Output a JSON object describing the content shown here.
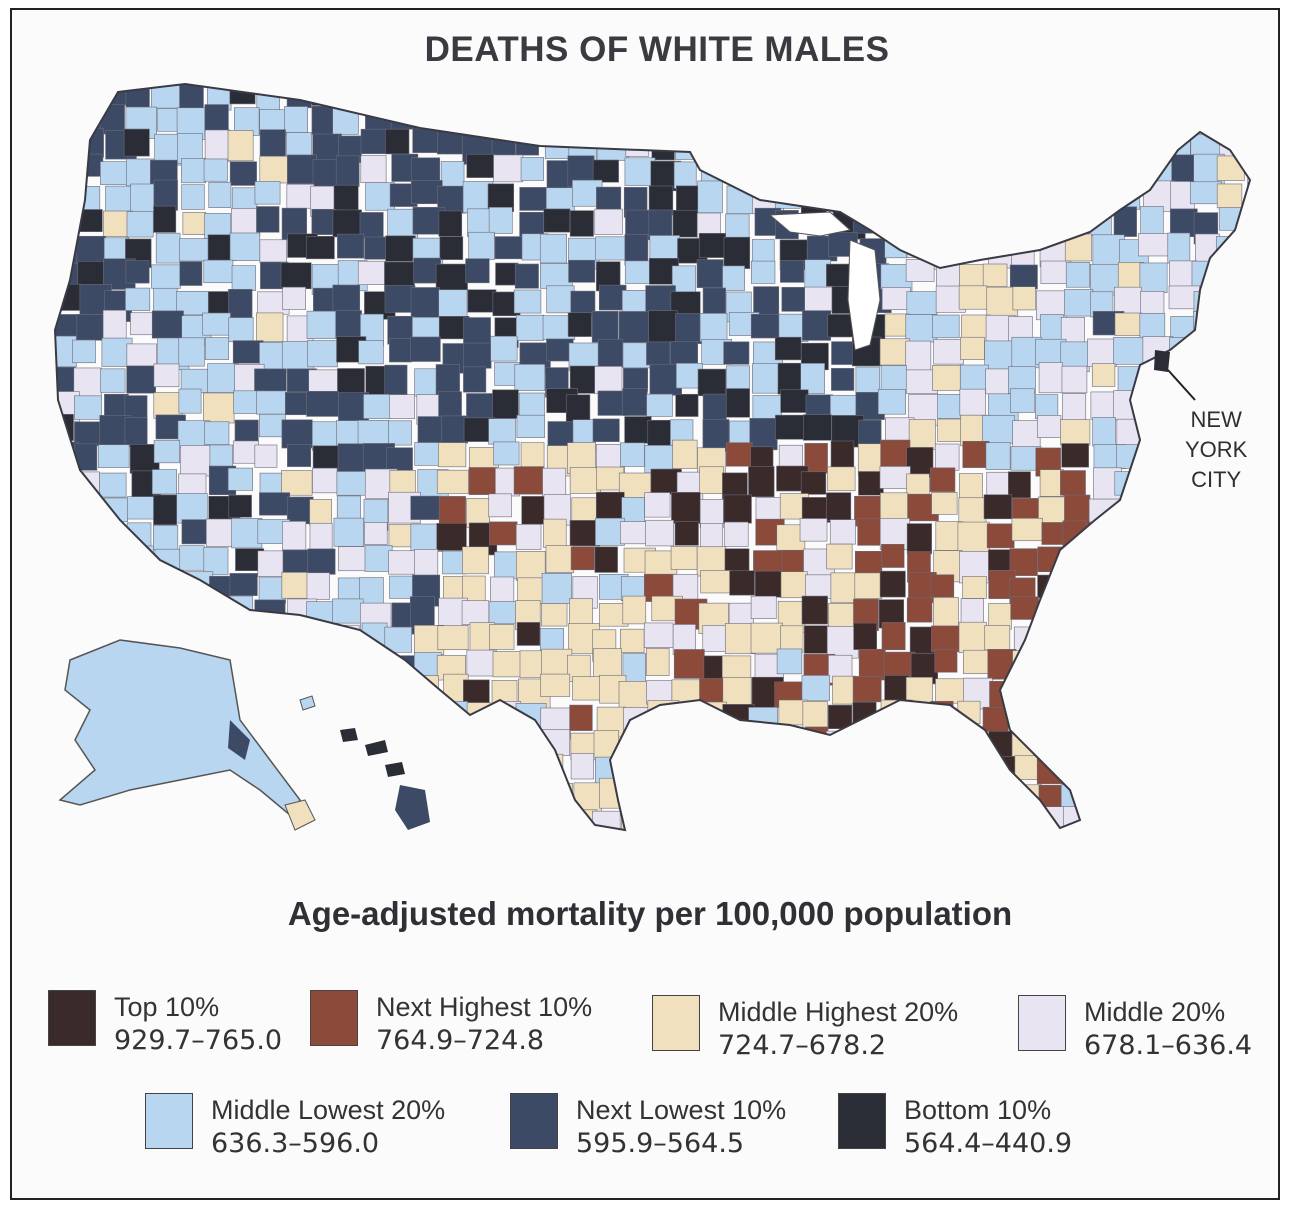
{
  "title": "DEATHS OF WHITE MALES",
  "subtitle": "Age-adjusted mortality per 100,000 population",
  "annotation": {
    "line1": "NEW",
    "line2": "YORK",
    "line3": "CITY"
  },
  "colors": {
    "top10": "#3a2a2a",
    "next_highest10": "#8b4a3a",
    "middle_highest20": "#f1e0bd",
    "middle20": "#e8e4f2",
    "middle_lowest20": "#b9d6f0",
    "next_lowest10": "#3c4a66",
    "bottom10": "#2a2d35",
    "background": "#fbfbfb",
    "border": "#222222"
  },
  "legend": [
    {
      "label": "Top 10%",
      "range": "929.7–765.0",
      "color": "#3a2a2a"
    },
    {
      "label": "Next Highest 10%",
      "range": "764.9–724.8",
      "color": "#8b4a3a"
    },
    {
      "label": "Middle Highest 20%",
      "range": "724.7–678.2",
      "color": "#f1e0bd"
    },
    {
      "label": "Middle 20%",
      "range": "678.1–636.4",
      "color": "#e8e4f2"
    },
    {
      "label": "Middle Lowest 20%",
      "range": "636.3–596.0",
      "color": "#b9d6f0"
    },
    {
      "label": "Next Lowest 10%",
      "range": "595.9–564.5",
      "color": "#3c4a66"
    },
    {
      "label": "Bottom 10%",
      "range": "564.4–440.9",
      "color": "#2a2d35"
    }
  ]
}
